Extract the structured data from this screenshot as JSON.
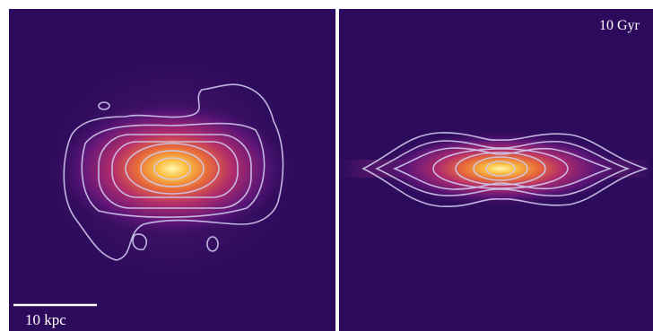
{
  "panels": [
    {
      "scale_bar": "10 kpc"
    },
    {
      "label": "10 Gyr"
    }
  ]
}
